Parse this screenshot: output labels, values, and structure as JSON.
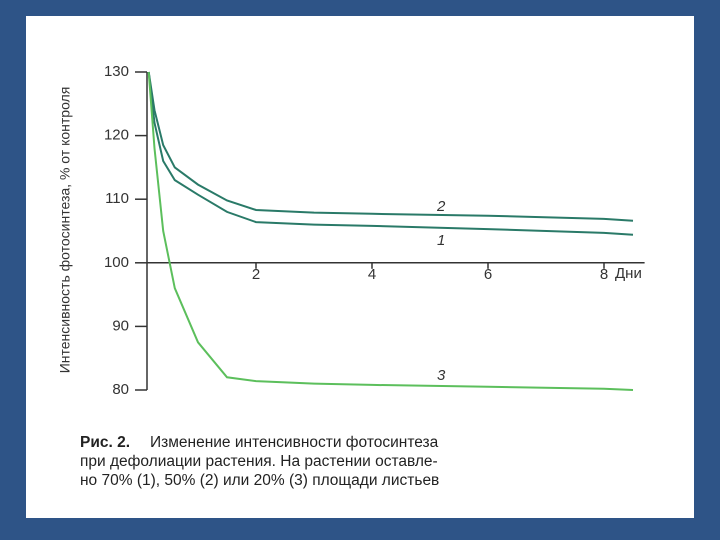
{
  "chart_data": {
    "type": "line",
    "y_label": "Интенсивность фотосинтеза, % от контроля",
    "x_label": "Дни",
    "x": [
      0.15,
      0.25,
      0.4,
      0.6,
      1,
      1.5,
      2,
      3,
      4,
      6,
      8,
      8.5
    ],
    "series": [
      {
        "name": "1",
        "color": "#2a7a68",
        "values": [
          130,
          122,
          116,
          113,
          110.7,
          108,
          106.4,
          106,
          105.8,
          105.3,
          104.7,
          104.4
        ]
      },
      {
        "name": "2",
        "color": "#2a7a68",
        "values": [
          130,
          124,
          118.5,
          115,
          112.3,
          109.8,
          108.3,
          107.9,
          107.7,
          107.4,
          106.9,
          106.6
        ]
      },
      {
        "name": "3",
        "color": "#5cbf5c",
        "values": [
          130,
          118,
          105,
          96,
          87.5,
          82,
          81.4,
          81,
          80.8,
          80.5,
          80.2,
          80
        ]
      }
    ],
    "xlim": [
      0,
      8.7
    ],
    "ylim": [
      80,
      130
    ],
    "xticks": [
      2,
      4,
      6,
      8
    ],
    "yticks": [
      80,
      90,
      100,
      110,
      120,
      130
    ],
    "caption_label": "Рис. 2.",
    "caption_lines": [
      "Изменение интенсивности фотосинтеза",
      "при дефолиации растения. На растении оставле-",
      "но 70% (1), 50% (2) или 20% (3) площади листьев"
    ]
  }
}
